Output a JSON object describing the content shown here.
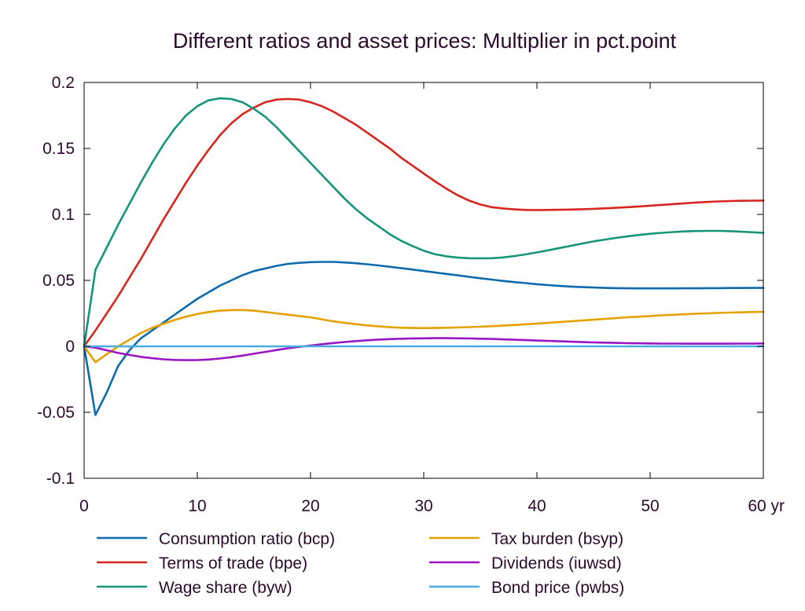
{
  "chart_data": {
    "type": "line",
    "title": "Different ratios and asset prices: Multiplier in pct.point",
    "xlabel": "",
    "ylabel": "",
    "x_unit_label": "yr",
    "xlim": [
      0,
      60
    ],
    "ylim": [
      -0.1,
      0.2
    ],
    "x_ticks": [
      0,
      10,
      20,
      30,
      40,
      50,
      60
    ],
    "x_tick_labels": [
      "0",
      "10",
      "20",
      "30",
      "40",
      "50",
      "60 yr"
    ],
    "y_ticks": [
      -0.1,
      -0.05,
      0,
      0.05,
      0.1,
      0.15,
      0.2
    ],
    "y_tick_labels": [
      "-0.1",
      "-0.05",
      "0",
      "0.05",
      "0.1",
      "0.15",
      "0.2"
    ],
    "grid": false,
    "legend_position": "bottom",
    "x": [
      0,
      1,
      2,
      3,
      4,
      5,
      6,
      7,
      8,
      9,
      10,
      11,
      12,
      13,
      14,
      15,
      16,
      17,
      18,
      19,
      20,
      21,
      22,
      23,
      24,
      25,
      26,
      27,
      28,
      29,
      30,
      31,
      32,
      33,
      34,
      35,
      36,
      37,
      38,
      39,
      40,
      41,
      42,
      43,
      44,
      45,
      46,
      47,
      48,
      49,
      50,
      51,
      52,
      53,
      54,
      55,
      56,
      57,
      58,
      59,
      60
    ],
    "series": [
      {
        "name": "Consumption ratio (bcp)",
        "color": "#0d6aad",
        "values": [
          0,
          -0.052,
          -0.035,
          -0.015,
          -0.003,
          0.006,
          0.012,
          0.018,
          0.024,
          0.03,
          0.036,
          0.041,
          0.046,
          0.05,
          0.054,
          0.057,
          0.059,
          0.061,
          0.0625,
          0.0633,
          0.0638,
          0.064,
          0.064,
          0.0636,
          0.063,
          0.0622,
          0.0613,
          0.0603,
          0.0593,
          0.0582,
          0.0571,
          0.056,
          0.0549,
          0.0538,
          0.0527,
          0.0516,
          0.0506,
          0.0496,
          0.0487,
          0.0479,
          0.0471,
          0.0464,
          0.0458,
          0.0453,
          0.0449,
          0.0446,
          0.0443,
          0.0441,
          0.044,
          0.0439,
          0.0439,
          0.0439,
          0.0439,
          0.044,
          0.044,
          0.0441,
          0.0441,
          0.0442,
          0.0442,
          0.0443,
          0.0443
        ]
      },
      {
        "name": "Terms of trade (bpe)",
        "color": "#d7261e",
        "values": [
          0,
          0.012,
          0.025,
          0.038,
          0.052,
          0.066,
          0.081,
          0.096,
          0.11,
          0.124,
          0.137,
          0.149,
          0.16,
          0.169,
          0.176,
          0.181,
          0.185,
          0.187,
          0.1875,
          0.187,
          0.185,
          0.182,
          0.178,
          0.173,
          0.168,
          0.162,
          0.156,
          0.15,
          0.143,
          0.137,
          0.131,
          0.125,
          0.1195,
          0.1145,
          0.1105,
          0.1075,
          0.1055,
          0.1045,
          0.1038,
          0.1034,
          0.1033,
          0.1034,
          0.1035,
          0.1037,
          0.1039,
          0.1042,
          0.1046,
          0.105,
          0.1055,
          0.106,
          0.1066,
          0.1072,
          0.1078,
          0.1084,
          0.109,
          0.1094,
          0.1098,
          0.1101,
          0.1103,
          0.1104,
          0.1105
        ]
      },
      {
        "name": "Wage share (byw)",
        "color": "#16957a",
        "values": [
          0,
          0.058,
          0.075,
          0.092,
          0.108,
          0.124,
          0.139,
          0.153,
          0.165,
          0.175,
          0.182,
          0.1865,
          0.188,
          0.1875,
          0.185,
          0.18,
          0.174,
          0.166,
          0.157,
          0.148,
          0.139,
          0.13,
          0.121,
          0.112,
          0.104,
          0.097,
          0.091,
          0.085,
          0.08,
          0.076,
          0.0725,
          0.0698,
          0.0682,
          0.0673,
          0.0668,
          0.0667,
          0.0668,
          0.0674,
          0.0684,
          0.0697,
          0.0712,
          0.0728,
          0.0745,
          0.0762,
          0.0779,
          0.0795,
          0.0809,
          0.0822,
          0.0834,
          0.0844,
          0.0853,
          0.086,
          0.0866,
          0.0871,
          0.0874,
          0.0875,
          0.0875,
          0.0873,
          0.0869,
          0.0865,
          0.086
        ]
      },
      {
        "name": "Tax burden (bsyp)",
        "color": "#e5a100",
        "values": [
          0,
          -0.012,
          -0.006,
          0.0,
          0.005,
          0.01,
          0.014,
          0.017,
          0.02,
          0.0225,
          0.0245,
          0.026,
          0.027,
          0.0275,
          0.0275,
          0.027,
          0.026,
          0.025,
          0.024,
          0.023,
          0.022,
          0.0205,
          0.019,
          0.0178,
          0.0168,
          0.0159,
          0.0151,
          0.0145,
          0.0141,
          0.0139,
          0.0138,
          0.0139,
          0.0141,
          0.0143,
          0.0146,
          0.0149,
          0.0153,
          0.0157,
          0.0162,
          0.0167,
          0.0172,
          0.0178,
          0.0184,
          0.019,
          0.0196,
          0.0202,
          0.0208,
          0.0214,
          0.022,
          0.0225,
          0.023,
          0.0235,
          0.0239,
          0.0243,
          0.0247,
          0.025,
          0.0253,
          0.0256,
          0.0258,
          0.026,
          0.0262
        ]
      },
      {
        "name": "Dividends (iuwsd)",
        "color": "#9a16c2",
        "values": [
          0,
          -0.001,
          -0.003,
          -0.005,
          -0.0065,
          -0.008,
          -0.009,
          -0.0098,
          -0.0103,
          -0.0105,
          -0.0104,
          -0.01,
          -0.0092,
          -0.0082,
          -0.007,
          -0.0056,
          -0.0042,
          -0.0028,
          -0.0015,
          -0.0004,
          0.0006,
          0.0016,
          0.0025,
          0.0033,
          0.004,
          0.0046,
          0.0051,
          0.0055,
          0.0058,
          0.006,
          0.0061,
          0.0062,
          0.0062,
          0.0061,
          0.006,
          0.0058,
          0.0056,
          0.0053,
          0.005,
          0.0047,
          0.0044,
          0.0041,
          0.0038,
          0.0035,
          0.0032,
          0.003,
          0.0028,
          0.0026,
          0.0024,
          0.0023,
          0.0022,
          0.0021,
          0.0021,
          0.002,
          0.002,
          0.002,
          0.002,
          0.002,
          0.0021,
          0.0021,
          0.0022
        ]
      },
      {
        "name": "Bond price (pwbs)",
        "color": "#4aaee3",
        "values": [
          0,
          0,
          0,
          0,
          0,
          0,
          0,
          0,
          0,
          0,
          0,
          0,
          0,
          0,
          0,
          0,
          0,
          0,
          0,
          0,
          0,
          0,
          0,
          0,
          0,
          0,
          0,
          0,
          0,
          0,
          0,
          0,
          0,
          0,
          0,
          0,
          0,
          0,
          0,
          0,
          0,
          0,
          0,
          0,
          0,
          0,
          0,
          0,
          0,
          0,
          0,
          0,
          0,
          0,
          0,
          0,
          0,
          0,
          0,
          0,
          0
        ]
      }
    ],
    "zero_line_color": "#1e3a8a"
  }
}
